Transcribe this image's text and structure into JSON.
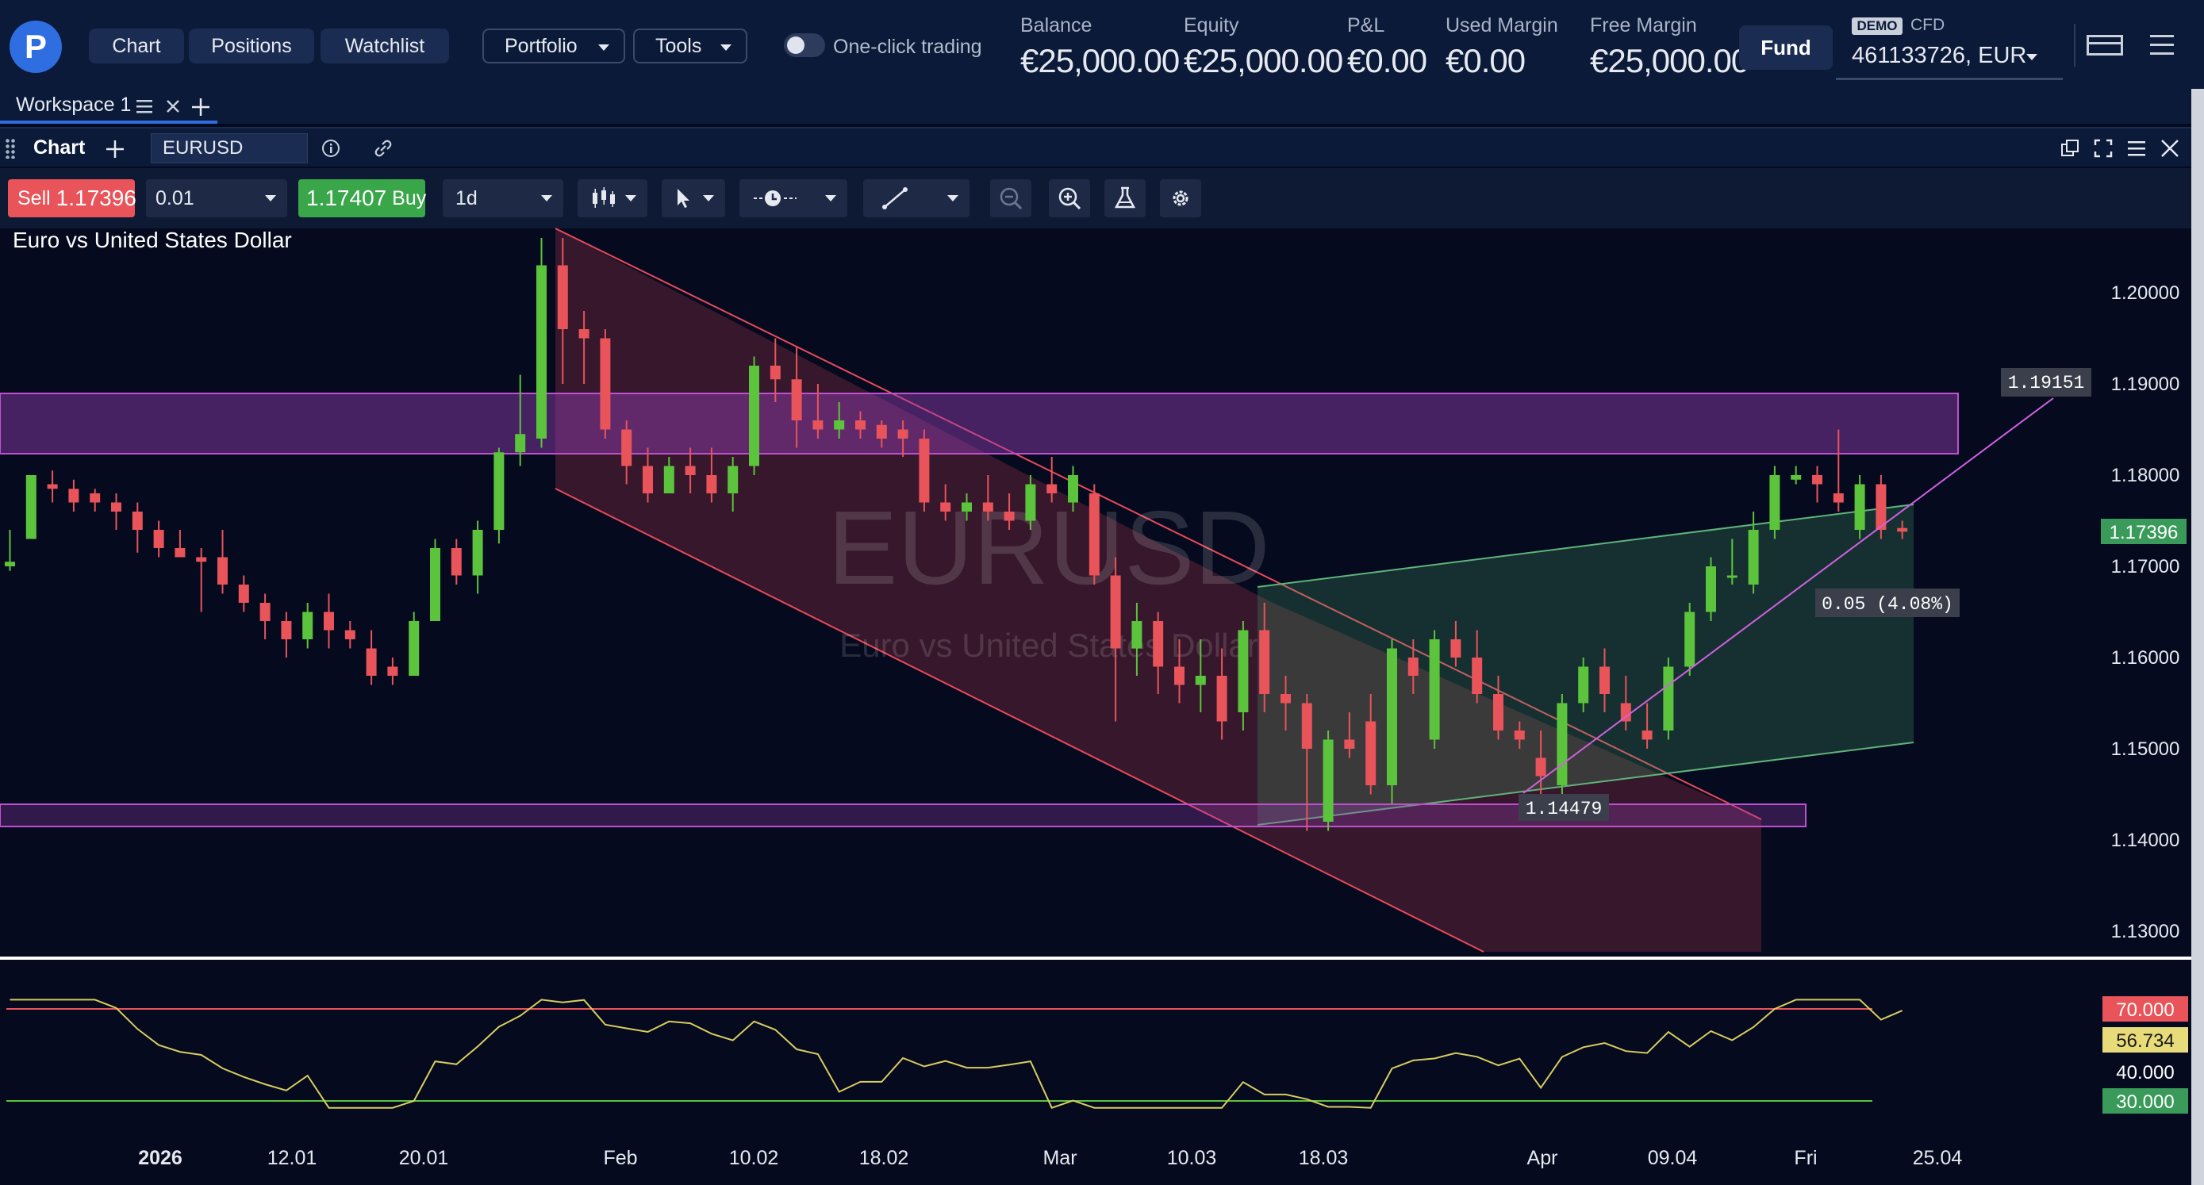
{
  "nav": {
    "chart": "Chart",
    "positions": "Positions",
    "watchlist": "Watchlist",
    "portfolio": "Portfolio",
    "tools": "Tools",
    "one_click": "One-click trading"
  },
  "account": {
    "balance_label": "Balance",
    "balance": "€25,000.00",
    "equity_label": "Equity",
    "equity": "€25,000.00",
    "pnl_label": "P&L",
    "pnl": "€0.00",
    "used_margin_label": "Used Margin",
    "used_margin": "€0.00",
    "free_margin_label": "Free Margin",
    "free_margin": "€25,000.00",
    "fund": "Fund",
    "demo": "DEMO",
    "cfd": "CFD",
    "account_id": "461133726, EUR"
  },
  "workspace": {
    "tab": "Workspace 1"
  },
  "chart_header": {
    "title": "Chart",
    "symbol": "EURUSD"
  },
  "toolbar": {
    "sell_label": "Sell",
    "sell_price": "1.17396",
    "quantity": "0.01",
    "buy_price": "1.17407",
    "buy_label": "Buy",
    "interval": "1d"
  },
  "chart_data": {
    "type": "candlestick",
    "title": "Euro vs United States Dollar",
    "watermark_symbol": "EURUSD",
    "watermark_name": "Euro vs United States Dollar",
    "price_ticks": [
      "1.20000",
      "1.19000",
      "1.18000",
      "1.17000",
      "1.16000",
      "1.15000",
      "1.14000",
      "1.13000"
    ],
    "current_price": "1.17396",
    "annotations": {
      "line_end_label": "1.19151",
      "line_start_label": "1.14479",
      "measure_label": "0.05 (4.08%)"
    },
    "time_ticks": [
      "2026",
      "12.01",
      "20.01",
      "Feb",
      "10.02",
      "18.02",
      "Mar",
      "10.03",
      "18.03",
      "Apr",
      "09.04",
      "Fri",
      "25.04"
    ],
    "candles": [
      [
        1.17,
        1.174,
        1.1705,
        1.1695
      ],
      [
        1.173,
        1.18,
        1.18,
        1.173
      ],
      [
        1.179,
        1.1805,
        1.1785,
        1.177
      ],
      [
        1.1785,
        1.1795,
        1.177,
        1.176
      ],
      [
        1.178,
        1.1785,
        1.177,
        1.176
      ],
      [
        1.177,
        1.178,
        1.176,
        1.174
      ],
      [
        1.176,
        1.177,
        1.174,
        1.1715
      ],
      [
        1.174,
        1.175,
        1.172,
        1.171
      ],
      [
        1.172,
        1.174,
        1.171,
        1.171
      ],
      [
        1.171,
        1.172,
        1.1705,
        1.165
      ],
      [
        1.171,
        1.174,
        1.168,
        1.167
      ],
      [
        1.168,
        1.169,
        1.166,
        1.165
      ],
      [
        1.166,
        1.167,
        1.164,
        1.162
      ],
      [
        1.164,
        1.165,
        1.162,
        1.16
      ],
      [
        1.162,
        1.166,
        1.165,
        1.161
      ],
      [
        1.165,
        1.167,
        1.163,
        1.161
      ],
      [
        1.163,
        1.164,
        1.162,
        1.161
      ],
      [
        1.161,
        1.163,
        1.158,
        1.157
      ],
      [
        1.159,
        1.16,
        1.158,
        1.157
      ],
      [
        1.158,
        1.165,
        1.164,
        1.158
      ],
      [
        1.164,
        1.173,
        1.172,
        1.164
      ],
      [
        1.172,
        1.173,
        1.169,
        1.168
      ],
      [
        1.169,
        1.175,
        1.174,
        1.167
      ],
      [
        1.174,
        1.183,
        1.1825,
        1.1725
      ],
      [
        1.1825,
        1.191,
        1.1845,
        1.181
      ],
      [
        1.184,
        1.206,
        1.203,
        1.183
      ],
      [
        1.203,
        1.206,
        1.196,
        1.19
      ],
      [
        1.196,
        1.198,
        1.195,
        1.19
      ],
      [
        1.195,
        1.196,
        1.185,
        1.184
      ],
      [
        1.185,
        1.186,
        1.181,
        1.179
      ],
      [
        1.181,
        1.183,
        1.178,
        1.177
      ],
      [
        1.178,
        1.182,
        1.181,
        1.178
      ],
      [
        1.181,
        1.183,
        1.18,
        1.178
      ],
      [
        1.18,
        1.183,
        1.178,
        1.177
      ],
      [
        1.178,
        1.182,
        1.181,
        1.176
      ],
      [
        1.181,
        1.193,
        1.192,
        1.18
      ],
      [
        1.192,
        1.195,
        1.1905,
        1.188
      ],
      [
        1.1905,
        1.194,
        1.186,
        1.183
      ],
      [
        1.186,
        1.19,
        1.185,
        1.184
      ],
      [
        1.185,
        1.188,
        1.186,
        1.184
      ],
      [
        1.186,
        1.187,
        1.185,
        1.184
      ],
      [
        1.1855,
        1.186,
        1.184,
        1.183
      ],
      [
        1.185,
        1.186,
        1.184,
        1.182
      ],
      [
        1.184,
        1.185,
        1.177,
        1.176
      ],
      [
        1.177,
        1.179,
        1.176,
        1.175
      ],
      [
        1.176,
        1.178,
        1.177,
        1.175
      ],
      [
        1.177,
        1.18,
        1.176,
        1.175
      ],
      [
        1.176,
        1.178,
        1.175,
        1.174
      ],
      [
        1.175,
        1.18,
        1.179,
        1.174
      ],
      [
        1.179,
        1.182,
        1.178,
        1.177
      ],
      [
        1.177,
        1.181,
        1.18,
        1.176
      ],
      [
        1.178,
        1.179,
        1.169,
        1.168
      ],
      [
        1.169,
        1.171,
        1.161,
        1.153
      ],
      [
        1.161,
        1.166,
        1.164,
        1.158
      ],
      [
        1.164,
        1.165,
        1.159,
        1.156
      ],
      [
        1.159,
        1.162,
        1.157,
        1.155
      ],
      [
        1.157,
        1.162,
        1.158,
        1.154
      ],
      [
        1.158,
        1.161,
        1.153,
        1.151
      ],
      [
        1.154,
        1.164,
        1.163,
        1.152
      ],
      [
        1.163,
        1.166,
        1.156,
        1.154
      ],
      [
        1.156,
        1.158,
        1.155,
        1.152
      ],
      [
        1.155,
        1.156,
        1.15,
        1.141
      ],
      [
        1.142,
        1.152,
        1.151,
        1.141
      ],
      [
        1.151,
        1.154,
        1.15,
        1.149
      ],
      [
        1.153,
        1.156,
        1.146,
        1.145
      ],
      [
        1.146,
        1.162,
        1.161,
        1.144
      ],
      [
        1.16,
        1.162,
        1.158,
        1.156
      ],
      [
        1.151,
        1.163,
        1.162,
        1.15
      ],
      [
        1.162,
        1.164,
        1.16,
        1.159
      ],
      [
        1.16,
        1.163,
        1.156,
        1.155
      ],
      [
        1.156,
        1.158,
        1.152,
        1.151
      ],
      [
        1.152,
        1.153,
        1.151,
        1.15
      ],
      [
        1.149,
        1.152,
        1.147,
        1.145
      ],
      [
        1.146,
        1.156,
        1.155,
        1.145
      ],
      [
        1.155,
        1.16,
        1.159,
        1.154
      ],
      [
        1.159,
        1.161,
        1.156,
        1.154
      ],
      [
        1.155,
        1.158,
        1.153,
        1.152
      ],
      [
        1.152,
        1.155,
        1.151,
        1.15
      ],
      [
        1.152,
        1.16,
        1.159,
        1.151
      ],
      [
        1.159,
        1.166,
        1.165,
        1.158
      ],
      [
        1.165,
        1.171,
        1.17,
        1.164
      ],
      [
        1.169,
        1.173,
        1.169,
        1.168
      ],
      [
        1.168,
        1.176,
        1.174,
        1.167
      ],
      [
        1.174,
        1.181,
        1.18,
        1.173
      ],
      [
        1.1795,
        1.181,
        1.18,
        1.179
      ],
      [
        1.18,
        1.181,
        1.179,
        1.177
      ],
      [
        1.178,
        1.185,
        1.177,
        1.176
      ],
      [
        1.174,
        1.18,
        1.179,
        1.173
      ],
      [
        1.179,
        1.18,
        1.174,
        1.173
      ],
      [
        1.1742,
        1.175,
        1.1738,
        1.173
      ]
    ],
    "rsi": {
      "level_high": "70.000",
      "current": "56.734",
      "mid": "40.000",
      "level_low": "30.000"
    },
    "colors": {
      "up": "#5cc43c",
      "down": "#e8545a",
      "band": "#c050d0",
      "channel_down": "#e84a5a",
      "channel_up": "#5fb37a"
    }
  }
}
